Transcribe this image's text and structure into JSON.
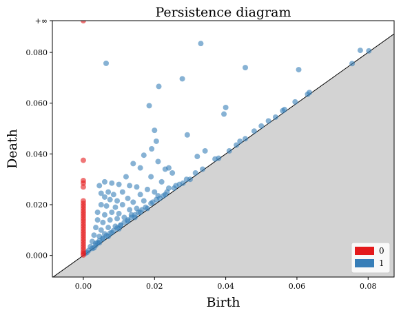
{
  "chart_data": {
    "type": "scatter",
    "title": "Persistence diagram",
    "xlabel": "Birth",
    "ylabel": "Death",
    "xlim": [
      -0.0087,
      0.0873
    ],
    "ylim": [
      -0.0085,
      0.0925
    ],
    "inf_label": "+∞",
    "inf_value": 0.0925,
    "diagonal": true,
    "shaded_below_diagonal": true,
    "grid": false,
    "legend_position": "bottom-right",
    "x_ticks": [
      {
        "value": 0.0,
        "label": "0.00"
      },
      {
        "value": 0.02,
        "label": "0.02"
      },
      {
        "value": 0.04,
        "label": "0.04"
      },
      {
        "value": 0.06,
        "label": "0.06"
      },
      {
        "value": 0.08,
        "label": "0.08"
      }
    ],
    "y_ticks": [
      {
        "value": 0.0,
        "label": "0.000"
      },
      {
        "value": 0.02,
        "label": "0.020"
      },
      {
        "value": 0.04,
        "label": "0.040"
      },
      {
        "value": 0.06,
        "label": "0.060"
      },
      {
        "value": 0.08,
        "label": "0.080"
      }
    ],
    "series": [
      {
        "name": "0",
        "color": "#e41a1c",
        "points": [
          [
            0,
            0.0925
          ],
          [
            0,
            0.0375
          ],
          [
            0,
            0.0295
          ],
          [
            0,
            0.0285
          ],
          [
            0,
            0.027
          ],
          [
            0,
            0.0215
          ],
          [
            0,
            0.0205
          ],
          [
            0,
            0.0195
          ],
          [
            0,
            0.0185
          ],
          [
            0,
            0.0175
          ],
          [
            0,
            0.0165
          ],
          [
            0,
            0.0155
          ],
          [
            0,
            0.0145
          ],
          [
            0,
            0.0135
          ],
          [
            0,
            0.0125
          ],
          [
            0,
            0.0115
          ],
          [
            0,
            0.0105
          ],
          [
            0,
            0.0095
          ],
          [
            0,
            0.0085
          ],
          [
            0,
            0.0075
          ],
          [
            0,
            0.0065
          ],
          [
            0,
            0.0055
          ],
          [
            0,
            0.0045
          ],
          [
            0,
            0.0035
          ],
          [
            0,
            0.0025
          ],
          [
            0,
            0.0015
          ],
          [
            0,
            0.0008
          ],
          [
            0,
            0.0002
          ]
        ]
      },
      {
        "name": "1",
        "color": "#377eb8",
        "points": [
          [
            0.033,
            0.0835
          ],
          [
            0.0064,
            0.0757
          ],
          [
            0.0455,
            0.074
          ],
          [
            0.0605,
            0.0732
          ],
          [
            0.0278,
            0.0696
          ],
          [
            0.0212,
            0.0666
          ],
          [
            0.0778,
            0.0808
          ],
          [
            0.0802,
            0.0806
          ],
          [
            0.0755,
            0.0756
          ],
          [
            0.0185,
            0.059
          ],
          [
            0.04,
            0.0583
          ],
          [
            0.0395,
            0.0557
          ],
          [
            0.0292,
            0.0475
          ],
          [
            0.02,
            0.0493
          ],
          [
            0.0205,
            0.045
          ],
          [
            0.032,
            0.039
          ],
          [
            0.0342,
            0.0412
          ],
          [
            0.0192,
            0.042
          ],
          [
            0.017,
            0.0395
          ],
          [
            0.014,
            0.0362
          ],
          [
            0.021,
            0.037
          ],
          [
            0.016,
            0.0345
          ],
          [
            0.024,
            0.0345
          ],
          [
            0.023,
            0.034
          ],
          [
            0.025,
            0.0325
          ],
          [
            0.019,
            0.031
          ],
          [
            0.012,
            0.031
          ],
          [
            0.006,
            0.029
          ],
          [
            0.008,
            0.0285
          ],
          [
            0.0045,
            0.0275
          ],
          [
            0.01,
            0.028
          ],
          [
            0.013,
            0.0275
          ],
          [
            0.022,
            0.029
          ],
          [
            0.026,
            0.0275
          ],
          [
            0.015,
            0.027
          ],
          [
            0.005,
            0.0245
          ],
          [
            0.007,
            0.025
          ],
          [
            0.0085,
            0.024
          ],
          [
            0.018,
            0.026
          ],
          [
            0.011,
            0.025
          ],
          [
            0.006,
            0.023
          ],
          [
            0.0075,
            0.022
          ],
          [
            0.0095,
            0.0215
          ],
          [
            0.0125,
            0.0225
          ],
          [
            0.016,
            0.024
          ],
          [
            0.02,
            0.025
          ],
          [
            0.024,
            0.0265
          ],
          [
            0.028,
            0.0285
          ],
          [
            0.005,
            0.02
          ],
          [
            0.0065,
            0.0195
          ],
          [
            0.009,
            0.019
          ],
          [
            0.011,
            0.02
          ],
          [
            0.014,
            0.021
          ],
          [
            0.017,
            0.0215
          ],
          [
            0.021,
            0.0235
          ],
          [
            0.03,
            0.03
          ],
          [
            0.004,
            0.017
          ],
          [
            0.006,
            0.016
          ],
          [
            0.008,
            0.017
          ],
          [
            0.01,
            0.0165
          ],
          [
            0.013,
            0.018
          ],
          [
            0.015,
            0.0185
          ],
          [
            0.019,
            0.0205
          ],
          [
            0.023,
            0.024
          ],
          [
            0.004,
            0.014
          ],
          [
            0.0055,
            0.013
          ],
          [
            0.0075,
            0.014
          ],
          [
            0.0095,
            0.0145
          ],
          [
            0.0115,
            0.015
          ],
          [
            0.0135,
            0.016
          ],
          [
            0.016,
            0.017
          ],
          [
            0.018,
            0.0185
          ],
          [
            0.0035,
            0.011
          ],
          [
            0.005,
            0.01
          ],
          [
            0.007,
            0.011
          ],
          [
            0.009,
            0.0115
          ],
          [
            0.0105,
            0.012
          ],
          [
            0.0125,
            0.0135
          ],
          [
            0.0145,
            0.015
          ],
          [
            0.003,
            0.008
          ],
          [
            0.0045,
            0.0075
          ],
          [
            0.006,
            0.0085
          ],
          [
            0.008,
            0.009
          ],
          [
            0.01,
            0.0105
          ],
          [
            0.0025,
            0.0055
          ],
          [
            0.004,
            0.005
          ],
          [
            0.0055,
            0.0065
          ],
          [
            0.007,
            0.0075
          ],
          [
            0.002,
            0.0035
          ],
          [
            0.003,
            0.003
          ],
          [
            0.0045,
            0.005
          ],
          [
            0.0015,
            0.002
          ],
          [
            0.001,
            0.0012
          ],
          [
            0.0025,
            0.0028
          ],
          [
            0.0005,
            0.0008
          ],
          [
            0.0035,
            0.004
          ],
          [
            0.0335,
            0.034
          ],
          [
            0.037,
            0.038
          ],
          [
            0.038,
            0.0383
          ],
          [
            0.041,
            0.0412
          ],
          [
            0.043,
            0.0435
          ],
          [
            0.044,
            0.045
          ],
          [
            0.0455,
            0.046
          ],
          [
            0.048,
            0.049
          ],
          [
            0.05,
            0.051
          ],
          [
            0.052,
            0.053
          ],
          [
            0.054,
            0.0545
          ],
          [
            0.056,
            0.057
          ],
          [
            0.0565,
            0.0575
          ],
          [
            0.0595,
            0.0605
          ],
          [
            0.063,
            0.0635
          ],
          [
            0.0635,
            0.0642
          ],
          [
            0.0315,
            0.0325
          ],
          [
            0.029,
            0.03
          ],
          [
            0.027,
            0.028
          ],
          [
            0.0255,
            0.0265
          ],
          [
            0.0235,
            0.025
          ],
          [
            0.0225,
            0.0235
          ],
          [
            0.0215,
            0.0225
          ],
          [
            0.0205,
            0.022
          ],
          [
            0.0195,
            0.021
          ],
          [
            0.0175,
            0.019
          ],
          [
            0.0165,
            0.018
          ],
          [
            0.0155,
            0.017
          ],
          [
            0.0145,
            0.016
          ],
          [
            0.0135,
            0.015
          ],
          [
            0.0125,
            0.014
          ],
          [
            0.0115,
            0.013
          ],
          [
            0.0105,
            0.0118
          ],
          [
            0.0095,
            0.0108
          ],
          [
            0.0085,
            0.0098
          ],
          [
            0.0075,
            0.0088
          ],
          [
            0.0065,
            0.0078
          ],
          [
            0.0055,
            0.0068
          ],
          [
            0.0045,
            0.0058
          ],
          [
            0.0035,
            0.0048
          ]
        ]
      }
    ]
  }
}
